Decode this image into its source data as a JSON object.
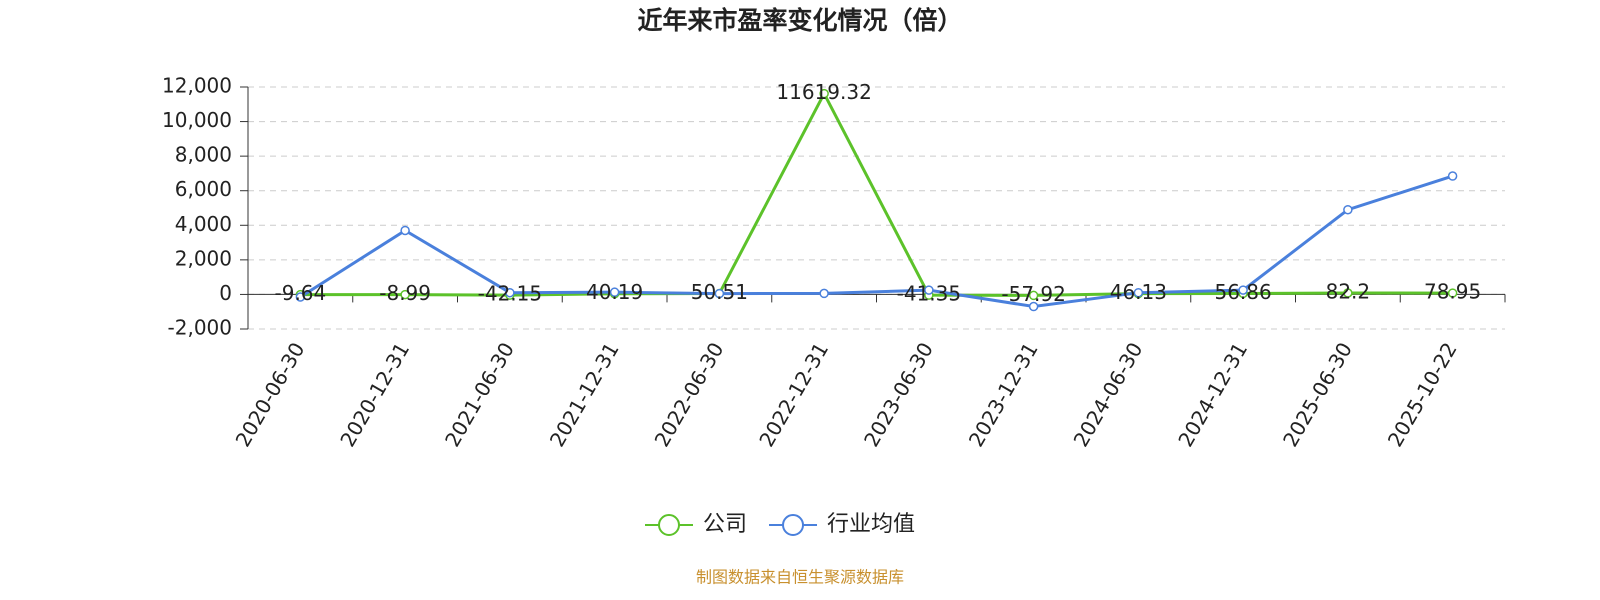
{
  "chart_data": {
    "type": "line",
    "title": "近年来市盈率变化情况（倍）",
    "categories": [
      "2020-06-30",
      "2020-12-31",
      "2021-06-30",
      "2021-12-31",
      "2022-06-30",
      "2022-12-31",
      "2023-06-30",
      "2023-12-31",
      "2024-06-30",
      "2024-12-31",
      "2025-06-30",
      "2025-10-22"
    ],
    "series": [
      {
        "name": "公司",
        "color": "#5cc22a",
        "values": [
          -9.64,
          -8.99,
          -42.15,
          40.19,
          50.51,
          11619.32,
          -41.35,
          -57.92,
          46.13,
          56.86,
          82.2,
          78.95
        ]
      },
      {
        "name": "行业均值",
        "color": "#4a80dc",
        "values": [
          -150,
          3700,
          100,
          130,
          50,
          60,
          250,
          -700,
          100,
          250,
          4900,
          6850
        ]
      }
    ],
    "ylim": [
      -2000,
      12000
    ],
    "yticks": [
      {
        "value": -2000,
        "label": "-2,000"
      },
      0,
      {
        "value": 2000,
        "label": "2,000"
      },
      {
        "value": 4000,
        "label": "4,000"
      },
      {
        "value": 6000,
        "label": "6,000"
      },
      {
        "value": 8000,
        "label": "8,000"
      },
      {
        "value": 10000,
        "label": "10,000"
      },
      {
        "value": 12000,
        "label": "12,000"
      }
    ],
    "grid": true,
    "legend": "bottom",
    "source": "制图数据来自恒生聚源数据库"
  }
}
